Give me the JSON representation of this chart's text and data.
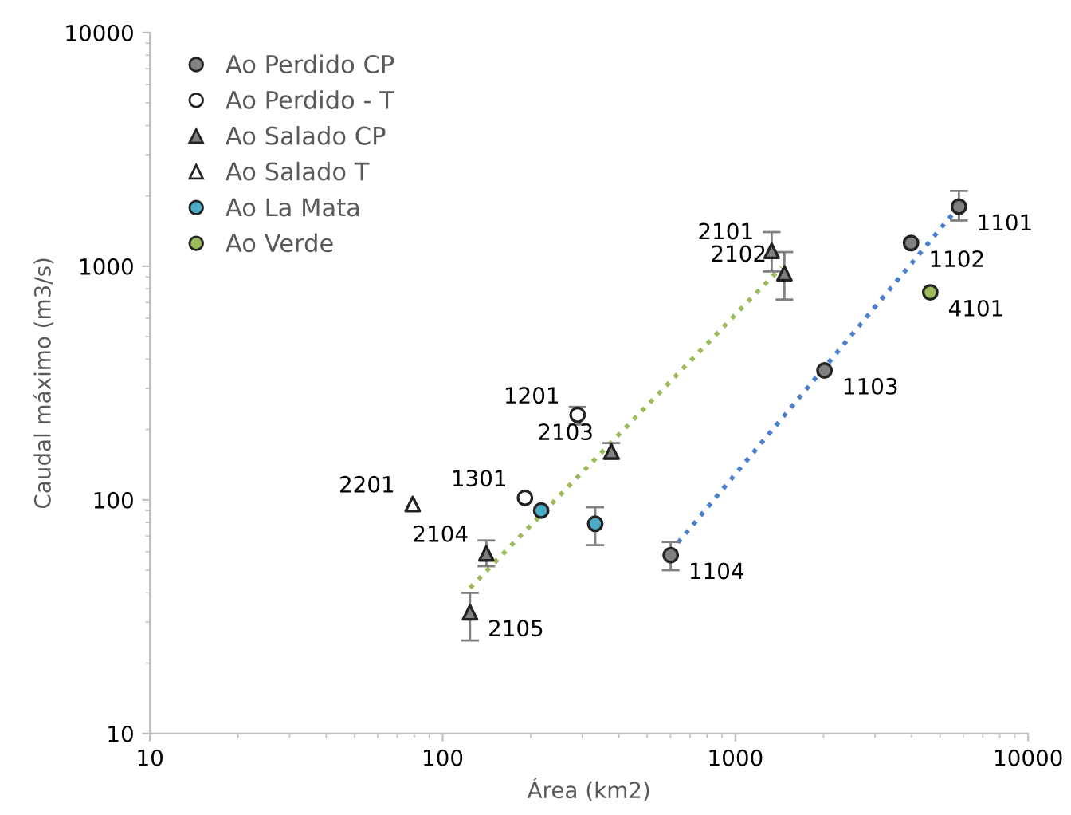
{
  "chart_data": {
    "type": "scatter",
    "xlabel": "Área (km2)",
    "ylabel": "Caudal máximo (m3/s)",
    "log": "xy",
    "xlim": [
      10,
      10000
    ],
    "ylim": [
      10,
      10000
    ],
    "xticks": [
      10,
      100,
      1000,
      10000
    ],
    "yticks": [
      10,
      100,
      1000,
      10000
    ],
    "legend": "top left",
    "grid": false,
    "series": [
      {
        "name": "Ao Perdido CP",
        "marker": "circle",
        "color": "#808080",
        "x": [
          5800,
          3980,
          2015,
          601
        ],
        "values": [
          1800,
          1257,
          358,
          58
        ],
        "errors": [
          [
            1570,
            2100
          ],
          null,
          null,
          [
            50,
            66
          ]
        ]
      },
      {
        "name": "Ao Perdido - T",
        "marker": "circle",
        "color": "#ffffff",
        "x": [
          289,
          191
        ],
        "values": [
          231,
          102
        ],
        "errors": [
          [
            210,
            250
          ],
          null
        ]
      },
      {
        "name": "Ao Salado CP",
        "marker": "triangle",
        "color": "#808080",
        "x": [
          1330,
          1470,
          377,
          141,
          124
        ],
        "values": [
          1163,
          933,
          161,
          59,
          33
        ],
        "errors": [
          [
            950,
            1400
          ],
          [
            720,
            1150
          ],
          [
            150,
            175
          ],
          [
            52,
            67
          ],
          [
            25,
            40
          ]
        ]
      },
      {
        "name": "Ao Salado T",
        "marker": "triangle",
        "color": "#ffffff",
        "x": [
          79
        ],
        "values": [
          96
        ]
      },
      {
        "name": "Ao La Mata",
        "marker": "circle",
        "color": "#4bacc6",
        "x": [
          217,
          332
        ],
        "values": [
          90,
          79
        ],
        "errors": [
          null,
          [
            64,
            93
          ]
        ]
      },
      {
        "name": "Ao Verde",
        "marker": "circle",
        "color": "#9bbb59",
        "x": [
          4630
        ],
        "values": [
          773
        ]
      },
      {
        "type": "line",
        "line_style": "dotted",
        "marker": "none",
        "color": "#9bbb59",
        "x": [
          124,
          1435
        ],
        "values": [
          42,
          990
        ]
      },
      {
        "type": "line",
        "line_style": "dotted",
        "marker": "none",
        "color": "#4a7fd0",
        "x": [
          600,
          5800
        ],
        "values": [
          60,
          1800
        ]
      }
    ],
    "annotations": [
      {
        "text": "1101",
        "x": 5800,
        "y": 1800
      },
      {
        "text": "1102",
        "x": 3980,
        "y": 1257
      },
      {
        "text": "1103",
        "x": 2015,
        "y": 358
      },
      {
        "text": "1104",
        "x": 601,
        "y": 58
      },
      {
        "text": "1201",
        "x": 289,
        "y": 231
      },
      {
        "text": "1301",
        "x": 191,
        "y": 102
      },
      {
        "text": "2101",
        "x": 1330,
        "y": 1163
      },
      {
        "text": "2102",
        "x": 1470,
        "y": 933
      },
      {
        "text": "2103",
        "x": 377,
        "y": 161
      },
      {
        "text": "2104",
        "x": 141,
        "y": 59
      },
      {
        "text": "2105",
        "x": 124,
        "y": 33
      },
      {
        "text": "2201",
        "x": 79,
        "y": 96
      },
      {
        "text": "4101",
        "x": 4630,
        "y": 773
      }
    ]
  }
}
